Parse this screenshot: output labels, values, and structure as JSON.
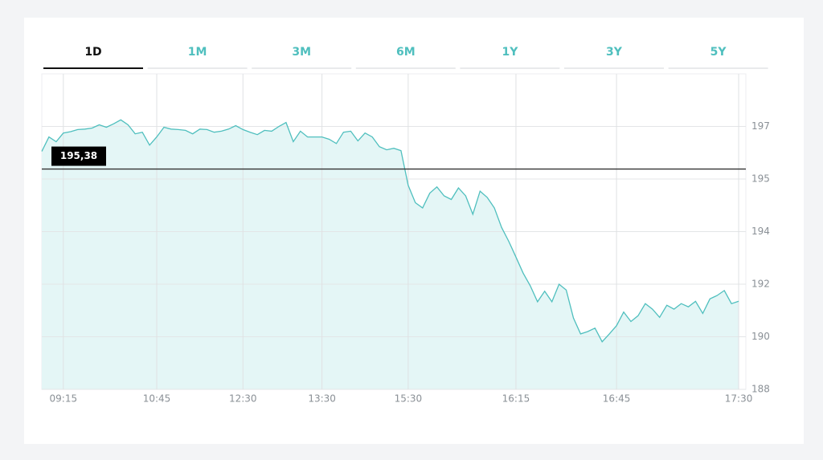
{
  "tabs": [
    "1D",
    "1M",
    "3M",
    "6M",
    "1Y",
    "3Y",
    "5Y"
  ],
  "active_tab": 0,
  "chart_data": {
    "type": "area",
    "color": "#4fbfbe",
    "fill_color": "#e4f6f6",
    "grid": true,
    "x": [
      null,
      null,
      null,
      "09:15",
      null,
      null,
      null,
      null,
      null,
      null,
      null,
      null,
      null,
      null,
      null,
      null,
      "10:45",
      null,
      null,
      null,
      null,
      null,
      null,
      null,
      null,
      null,
      null,
      null,
      "12:30",
      null,
      null,
      null,
      null,
      null,
      null,
      null,
      null,
      null,
      null,
      "13:30",
      null,
      null,
      null,
      null,
      null,
      null,
      null,
      null,
      null,
      null,
      null,
      "15:30",
      null,
      null,
      null,
      null,
      null,
      null,
      null,
      null,
      null,
      null,
      null,
      null,
      null,
      null,
      "16:15",
      null,
      null,
      null,
      null,
      null,
      null,
      null,
      null,
      null,
      null,
      null,
      null,
      null,
      "16:45",
      null,
      null,
      null,
      null,
      null,
      null,
      null,
      null,
      null,
      null,
      null,
      null,
      null,
      null,
      null,
      null,
      "17:30"
    ],
    "values": [
      196.05,
      196.6,
      196.42,
      196.75,
      196.8,
      196.88,
      196.9,
      196.94,
      197.06,
      196.97,
      197.1,
      197.25,
      197.06,
      196.72,
      196.78,
      196.29,
      196.6,
      196.97,
      196.9,
      196.88,
      196.85,
      196.72,
      196.9,
      196.88,
      196.78,
      196.82,
      196.9,
      197.03,
      196.88,
      196.78,
      196.69,
      196.85,
      196.82,
      197,
      197.15,
      196.42,
      196.82,
      196.6,
      196.6,
      196.6,
      196.51,
      196.35,
      196.78,
      196.82,
      196.45,
      196.75,
      196.6,
      196.23,
      196.11,
      196.17,
      196.08,
      194.88,
      194.55,
      194.45,
      194.73,
      194.85,
      194.68,
      194.61,
      194.83,
      194.68,
      194.33,
      194.77,
      194.65,
      194.45,
      194.08,
      193.63,
      193.03,
      192.42,
      191.94,
      191.33,
      191.73,
      191.33,
      192,
      191.78,
      190.71,
      190.11,
      190.2,
      190.33,
      189.81,
      190.11,
      190.42,
      190.94,
      190.58,
      190.8,
      191.26,
      191.05,
      190.74,
      191.2,
      191.05,
      191.26,
      191.14,
      191.35,
      190.89,
      191.44,
      191.57,
      191.76,
      191.26,
      191.35
    ],
    "ylim": [
      188,
      199
    ],
    "yticks": [
      188,
      190,
      192,
      194,
      195,
      197
    ],
    "reference_line": {
      "value": 195.38,
      "value_label": "195,38"
    }
  }
}
